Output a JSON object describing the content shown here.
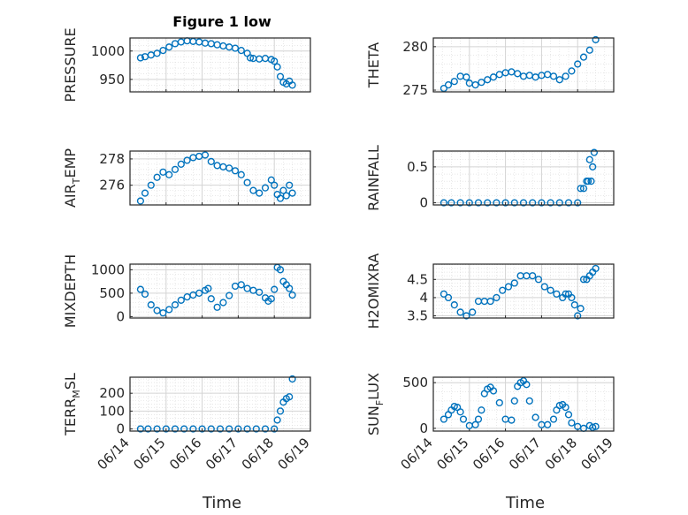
{
  "chart_data": {
    "type": "scatter",
    "title": "Figure 1 low",
    "xlabel": "Time",
    "x_ticks": [
      "06/14",
      "06/15",
      "06/16",
      "06/17",
      "06/18",
      "06/19"
    ],
    "xlim": [
      "06/14",
      "06/19"
    ],
    "grid": true,
    "marker": "open-circle",
    "color": "#0072bd",
    "panels": [
      {
        "ylabel": "PRESSURE",
        "yticks": [
          950,
          1000
        ],
        "ylim": [
          928,
          1023
        ],
        "x": [
          "06/14 07:00",
          "06/14 10:00",
          "06/14 14:00",
          "06/14 18:00",
          "06/14 22:00",
          "06/15 02:00",
          "06/15 06:00",
          "06/15 10:00",
          "06/15 14:00",
          "06/15 18:00",
          "06/15 22:00",
          "06/16 02:00",
          "06/16 06:00",
          "06/16 10:00",
          "06/16 14:00",
          "06/16 18:00",
          "06/16 22:00",
          "06/17 02:00",
          "06/17 06:00",
          "06/17 08:00",
          "06/17 10:00",
          "06/17 14:00",
          "06/17 18:00",
          "06/17 22:00",
          "06/18 00:00",
          "06/18 02:00",
          "06/18 04:00",
          "06/18 06:00",
          "06/18 08:00",
          "06/18 10:00",
          "06/18 12:00"
        ],
        "y": [
          988,
          990,
          993,
          996,
          1001,
          1007,
          1013,
          1016,
          1018,
          1017,
          1016,
          1014,
          1013,
          1011,
          1009,
          1007,
          1005,
          1001,
          996,
          988,
          987,
          986,
          987,
          985,
          982,
          972,
          955,
          945,
          942,
          947,
          940
        ]
      },
      {
        "ylabel": "THETA",
        "yticks": [
          275,
          280
        ],
        "ylim": [
          274.8,
          281.0
        ],
        "x": [
          "06/14 07:00",
          "06/14 10:00",
          "06/14 14:00",
          "06/14 18:00",
          "06/14 22:00",
          "06/15 00:00",
          "06/15 04:00",
          "06/15 08:00",
          "06/15 12:00",
          "06/15 16:00",
          "06/15 20:00",
          "06/16 00:00",
          "06/16 04:00",
          "06/16 08:00",
          "06/16 12:00",
          "06/16 16:00",
          "06/16 20:00",
          "06/17 00:00",
          "06/17 04:00",
          "06/17 08:00",
          "06/17 12:00",
          "06/17 16:00",
          "06/17 20:00",
          "06/18 00:00",
          "06/18 04:00",
          "06/18 08:00",
          "06/18 12:00"
        ],
        "y": [
          275.2,
          275.6,
          276.0,
          276.6,
          276.5,
          275.8,
          275.6,
          275.9,
          276.2,
          276.5,
          276.8,
          277.0,
          277.1,
          276.9,
          276.6,
          276.7,
          276.5,
          276.7,
          276.8,
          276.6,
          276.2,
          276.6,
          277.2,
          278.0,
          278.8,
          279.6,
          280.8
        ]
      },
      {
        "ylabel": "AIR_TEMP",
        "yticks": [
          276,
          278
        ],
        "ylim": [
          274.5,
          278.6
        ],
        "x": [
          "06/14 07:00",
          "06/14 10:00",
          "06/14 14:00",
          "06/14 18:00",
          "06/14 22:00",
          "06/15 02:00",
          "06/15 06:00",
          "06/15 10:00",
          "06/15 14:00",
          "06/15 18:00",
          "06/15 22:00",
          "06/16 02:00",
          "06/16 06:00",
          "06/16 10:00",
          "06/16 14:00",
          "06/16 18:00",
          "06/16 22:00",
          "06/17 02:00",
          "06/17 06:00",
          "06/17 10:00",
          "06/17 14:00",
          "06/17 18:00",
          "06/17 22:00",
          "06/18 00:00",
          "06/18 02:00",
          "06/18 04:00",
          "06/18 06:00",
          "06/18 08:00",
          "06/18 10:00",
          "06/18 12:00"
        ],
        "y": [
          274.8,
          275.4,
          276.0,
          276.6,
          277.0,
          276.8,
          277.2,
          277.6,
          277.9,
          278.1,
          278.2,
          278.3,
          277.8,
          277.5,
          277.4,
          277.3,
          277.1,
          276.8,
          276.2,
          275.6,
          275.4,
          275.8,
          276.4,
          276.0,
          275.3,
          275.0,
          275.6,
          275.2,
          276.0,
          275.4
        ]
      },
      {
        "ylabel": "RAINFALL",
        "yticks": [
          0,
          0.5
        ],
        "ylim": [
          -0.03,
          0.72
        ],
        "x": [
          "06/14 07:00",
          "06/14 12:00",
          "06/14 18:00",
          "06/15 00:00",
          "06/15 06:00",
          "06/15 12:00",
          "06/15 18:00",
          "06/16 00:00",
          "06/16 06:00",
          "06/16 12:00",
          "06/16 18:00",
          "06/17 00:00",
          "06/17 06:00",
          "06/17 12:00",
          "06/17 18:00",
          "06/18 00:00",
          "06/18 02:00",
          "06/18 04:00",
          "06/18 06:00",
          "06/18 07:00",
          "06/18 08:00",
          "06/18 09:00",
          "06/18 10:00",
          "06/18 11:00"
        ],
        "y": [
          0,
          0,
          0,
          0,
          0,
          0,
          0,
          0,
          0,
          0,
          0,
          0,
          0,
          0,
          0,
          0,
          0.2,
          0.2,
          0.3,
          0.3,
          0.6,
          0.3,
          0.5,
          0.7
        ]
      },
      {
        "ylabel": "MIXDEPTH",
        "yticks": [
          0,
          500,
          1000
        ],
        "ylim": [
          -30,
          1120
        ],
        "x": [
          "06/14 07:00",
          "06/14 10:00",
          "06/14 14:00",
          "06/14 18:00",
          "06/14 22:00",
          "06/15 02:00",
          "06/15 06:00",
          "06/15 10:00",
          "06/15 14:00",
          "06/15 18:00",
          "06/15 22:00",
          "06/16 02:00",
          "06/16 04:00",
          "06/16 06:00",
          "06/16 10:00",
          "06/16 14:00",
          "06/16 18:00",
          "06/16 22:00",
          "06/17 02:00",
          "06/17 06:00",
          "06/17 10:00",
          "06/17 14:00",
          "06/17 18:00",
          "06/17 20:00",
          "06/17 22:00",
          "06/18 00:00",
          "06/18 02:00",
          "06/18 04:00",
          "06/18 06:00",
          "06/18 08:00",
          "06/18 10:00",
          "06/18 12:00"
        ],
        "y": [
          580,
          480,
          250,
          130,
          80,
          150,
          250,
          350,
          420,
          460,
          500,
          560,
          600,
          380,
          200,
          300,
          450,
          650,
          680,
          600,
          560,
          520,
          400,
          330,
          380,
          580,
          1050,
          1000,
          750,
          680,
          600,
          460
        ]
      },
      {
        "ylabel": "H2OMIXRA",
        "yticks": [
          3.5,
          4,
          4.5
        ],
        "ylim": [
          3.44,
          4.92
        ],
        "x": [
          "06/14 07:00",
          "06/14 10:00",
          "06/14 14:00",
          "06/14 18:00",
          "06/14 22:00",
          "06/15 02:00",
          "06/15 06:00",
          "06/15 10:00",
          "06/15 14:00",
          "06/15 18:00",
          "06/15 22:00",
          "06/16 02:00",
          "06/16 06:00",
          "06/16 10:00",
          "06/16 14:00",
          "06/16 18:00",
          "06/16 22:00",
          "06/17 02:00",
          "06/17 06:00",
          "06/17 10:00",
          "06/17 14:00",
          "06/17 16:00",
          "06/17 18:00",
          "06/17 20:00",
          "06/17 22:00",
          "06/18 00:00",
          "06/18 02:00",
          "06/18 04:00",
          "06/18 06:00",
          "06/18 08:00",
          "06/18 10:00",
          "06/18 12:00"
        ],
        "y": [
          4.1,
          4.0,
          3.8,
          3.6,
          3.5,
          3.6,
          3.9,
          3.9,
          3.9,
          4.0,
          4.2,
          4.3,
          4.4,
          4.6,
          4.6,
          4.6,
          4.5,
          4.3,
          4.2,
          4.1,
          4.0,
          4.1,
          4.1,
          4.0,
          3.8,
          3.5,
          3.7,
          4.5,
          4.5,
          4.6,
          4.7,
          4.8
        ]
      },
      {
        "ylabel": "TERR_MSL",
        "yticks": [
          0,
          100,
          200
        ],
        "ylim": [
          -12,
          290
        ],
        "x": [
          "06/14 07:00",
          "06/14 12:00",
          "06/14 18:00",
          "06/15 00:00",
          "06/15 06:00",
          "06/15 12:00",
          "06/15 18:00",
          "06/16 00:00",
          "06/16 06:00",
          "06/16 12:00",
          "06/16 18:00",
          "06/17 00:00",
          "06/17 06:00",
          "06/17 12:00",
          "06/17 18:00",
          "06/18 00:00",
          "06/18 02:00",
          "06/18 04:00",
          "06/18 06:00",
          "06/18 08:00",
          "06/18 10:00",
          "06/18 12:00"
        ],
        "y": [
          0,
          0,
          0,
          0,
          0,
          0,
          0,
          0,
          0,
          0,
          0,
          0,
          0,
          0,
          0,
          0,
          50,
          100,
          150,
          170,
          180,
          280
        ]
      },
      {
        "ylabel": "SUN_FLUX",
        "yticks": [
          0,
          500
        ],
        "ylim": [
          -30,
          560
        ],
        "x": [
          "06/14 07:00",
          "06/14 10:00",
          "06/14 12:00",
          "06/14 14:00",
          "06/14 16:00",
          "06/14 18:00",
          "06/14 20:00",
          "06/15 00:00",
          "06/15 04:00",
          "06/15 06:00",
          "06/15 08:00",
          "06/15 10:00",
          "06/15 12:00",
          "06/15 14:00",
          "06/15 16:00",
          "06/15 20:00",
          "06/16 00:00",
          "06/16 04:00",
          "06/16 06:00",
          "06/16 08:00",
          "06/16 10:00",
          "06/16 12:00",
          "06/16 14:00",
          "06/16 16:00",
          "06/16 20:00",
          "06/17 00:00",
          "06/17 04:00",
          "06/17 08:00",
          "06/17 10:00",
          "06/17 12:00",
          "06/17 14:00",
          "06/17 16:00",
          "06/17 18:00",
          "06/17 20:00",
          "06/18 00:00",
          "06/18 04:00",
          "06/18 08:00",
          "06/18 10:00",
          "06/18 12:00"
        ],
        "y": [
          100,
          150,
          200,
          240,
          230,
          180,
          100,
          30,
          40,
          100,
          200,
          380,
          430,
          450,
          410,
          280,
          100,
          90,
          300,
          460,
          500,
          520,
          480,
          300,
          120,
          40,
          40,
          100,
          200,
          250,
          260,
          230,
          150,
          60,
          20,
          0,
          30,
          10,
          20
        ]
      }
    ]
  }
}
